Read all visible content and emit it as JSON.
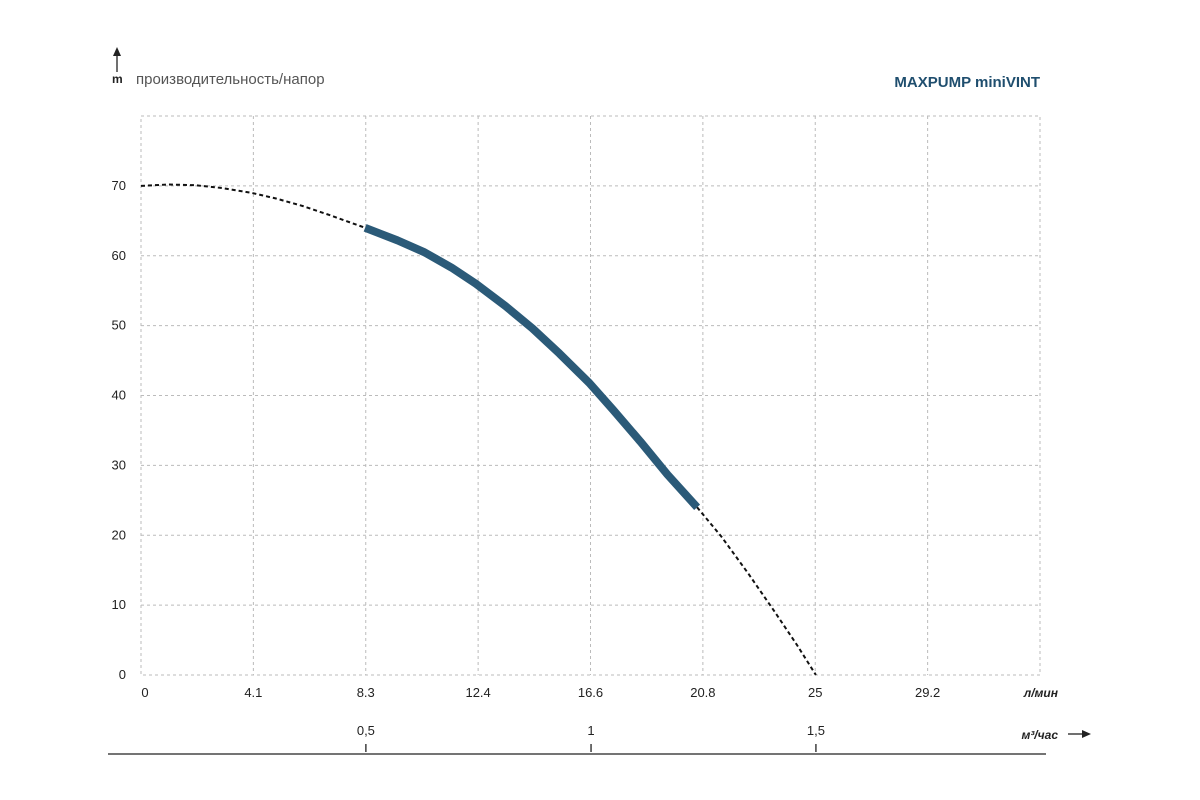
{
  "chart_data": {
    "type": "line",
    "title": "MAXPUMP miniVINT",
    "ylabel_unit": "m",
    "ylabel": "производительность/напор",
    "x_unit_primary": "л/мин",
    "x_unit_secondary": "м³/час",
    "x_ticks_primary": [
      "0",
      "4.1",
      "8.3",
      "12.4",
      "16.6",
      "20.8",
      "25",
      "29.2"
    ],
    "x_ticks_secondary": [
      "0,5",
      "1",
      "1,5"
    ],
    "x_ticks_secondary_values": [
      8.33,
      16.67,
      25
    ],
    "y_ticks": [
      "0",
      "10",
      "20",
      "30",
      "40",
      "50",
      "60",
      "70"
    ],
    "xlim": [
      0,
      33.3
    ],
    "ylim": [
      0,
      80
    ],
    "grid": true,
    "colors": {
      "curve": "#2b5a78",
      "dashed": "#111111",
      "grid": "#bbbbbb",
      "title": "#1f4e6e"
    },
    "series": [
      {
        "style": "dashed",
        "x": [
          0,
          1.0,
          2.0,
          3.0,
          4.1,
          5.0,
          6.0,
          7.0,
          8.3
        ],
        "y": [
          70,
          70.2,
          70.1,
          69.7,
          69.0,
          68.2,
          67.1,
          65.8,
          64.0
        ]
      },
      {
        "style": "solid",
        "x": [
          8.3,
          9.5,
          10.5,
          11.5,
          12.4,
          13.5,
          14.5,
          15.5,
          16.6,
          17.5,
          18.5,
          19.5,
          20.6
        ],
        "y": [
          64.0,
          62.2,
          60.5,
          58.3,
          56.0,
          52.8,
          49.6,
          46.0,
          41.8,
          37.9,
          33.4,
          28.7,
          24.0
        ]
      },
      {
        "style": "dashed",
        "x": [
          20.6,
          21.5,
          22.5,
          23.5,
          24.3,
          25.0
        ],
        "y": [
          24.0,
          19.8,
          14.5,
          8.9,
          4.3,
          0
        ]
      }
    ]
  }
}
